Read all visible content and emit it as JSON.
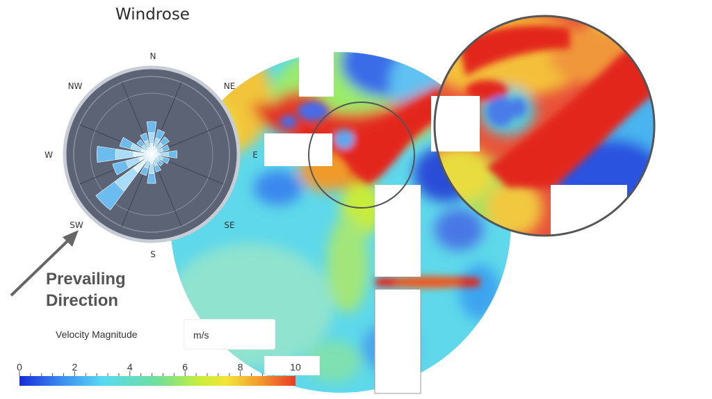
{
  "title": "Windrose",
  "compass": {
    "n": "N",
    "ne": "NE",
    "e": "E",
    "se": "SE",
    "s": "S",
    "sw": "SW",
    "w": "W",
    "nw": "NW"
  },
  "callout": {
    "line1": "Prevailing",
    "line2": "Direction"
  },
  "legend": {
    "label": "Velocity Magnitude",
    "unit": "m/s",
    "ticks": [
      "0",
      "2",
      "4",
      "6",
      "8",
      "10"
    ],
    "range": [
      0,
      10
    ],
    "colors": [
      "#1a2ad8",
      "#3b8cf0",
      "#5ad8f2",
      "#6ee09a",
      "#c6ee3c",
      "#f4e43a",
      "#f29a2e",
      "#ea3a24"
    ]
  },
  "windrose": {
    "prevailing": "SW",
    "petals": [
      {
        "dir": "N",
        "value": 0.45
      },
      {
        "dir": "NNE",
        "value": 0.35
      },
      {
        "dir": "NE",
        "value": 0.3
      },
      {
        "dir": "ENE",
        "value": 0.25
      },
      {
        "dir": "E",
        "value": 0.35
      },
      {
        "dir": "ESE",
        "value": 0.25
      },
      {
        "dir": "SE",
        "value": 0.2
      },
      {
        "dir": "SSE",
        "value": 0.25
      },
      {
        "dir": "S",
        "value": 0.4
      },
      {
        "dir": "SSW",
        "value": 0.3
      },
      {
        "dir": "SW",
        "value": 0.95
      },
      {
        "dir": "WSW",
        "value": 0.55
      },
      {
        "dir": "W",
        "value": 0.75
      },
      {
        "dir": "WNW",
        "value": 0.45
      },
      {
        "dir": "NW",
        "value": 0.25
      },
      {
        "dir": "NNW",
        "value": 0.3
      }
    ]
  }
}
